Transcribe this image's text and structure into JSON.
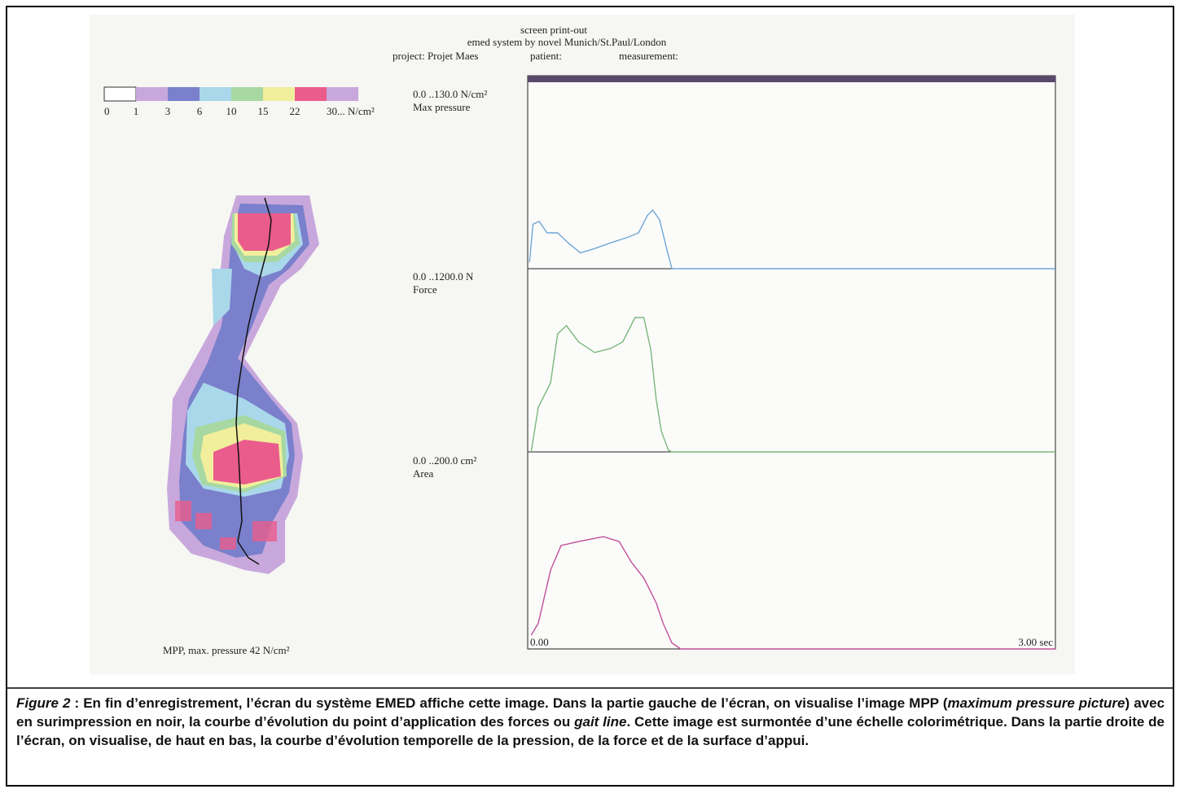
{
  "header": {
    "line1": "screen print-out",
    "line2": "emed system by novel Munich/St.Paul/London",
    "project": "project: Projet Maes",
    "patient": "patient:",
    "measurement": "measurement:"
  },
  "color_scale": {
    "colors": [
      "#ffffff",
      "#c8a8dc",
      "#7a80cc",
      "#a9d8ea",
      "#a8d8a2",
      "#f1ef9c",
      "#ea5c8c",
      "#c8a8dc"
    ],
    "labels": [
      "0",
      "1",
      "3",
      "6",
      "10",
      "15",
      "22",
      "30... N/cm²"
    ]
  },
  "foot_label": "MPP, max. pressure 42 N/cm²",
  "chart_data": {
    "type": "line",
    "xlim": [
      0,
      3
    ],
    "xticks": [
      {
        "value": 0,
        "label": "0.00"
      },
      {
        "value": 3,
        "label": "3.00 sec"
      }
    ],
    "series": [
      {
        "range": "0.0 ..130.0 N/cm²",
        "name": "Max pressure",
        "ylim": [
          0,
          130
        ],
        "color": "#6fa8d6",
        "x": [
          0.01,
          0.03,
          0.065,
          0.11,
          0.17,
          0.24,
          0.3,
          0.38,
          0.47,
          0.56,
          0.63,
          0.68,
          0.71,
          0.75,
          0.79,
          0.82,
          3.0
        ],
        "values": [
          4.5,
          31,
          33,
          25,
          25,
          17,
          11,
          14,
          18,
          21.5,
          25,
          37,
          41,
          34,
          14,
          0,
          0
        ]
      },
      {
        "range": "0.0 ..1200.0 N",
        "name": "Force",
        "ylim": [
          0,
          1200
        ],
        "color": "#7ab87a",
        "x": [
          0.02,
          0.06,
          0.13,
          0.17,
          0.22,
          0.29,
          0.38,
          0.47,
          0.54,
          0.61,
          0.66,
          0.7,
          0.73,
          0.76,
          0.8,
          0.82,
          3.0
        ],
        "values": [
          0,
          293,
          453,
          773,
          827,
          720,
          651,
          677,
          720,
          880,
          880,
          667,
          347,
          133,
          11,
          0,
          0
        ]
      },
      {
        "range": "0.0 ..200.0 cm²",
        "name": "Area",
        "ylim": [
          0,
          200
        ],
        "color": "#c0509a",
        "x": [
          0.02,
          0.06,
          0.13,
          0.19,
          0.29,
          0.43,
          0.52,
          0.59,
          0.66,
          0.73,
          0.77,
          0.82,
          0.87,
          3.0
        ],
        "values": [
          14,
          26,
          80,
          105,
          109,
          114,
          109,
          88,
          72,
          47,
          26,
          6,
          0,
          0
        ]
      }
    ]
  },
  "caption": {
    "parts": [
      "Figure 2",
      " : En fin d’enregistrement, l’écran du système EMED affiche cette image. Dans la partie gauche de l’écran, on visualise l’image MPP (",
      "maximum pressure picture",
      ") avec en surimpression en noir, la courbe d’évolution du point d’application des forces ou ",
      "gait line",
      ". Cette image est surmontée d’une échelle colorimétrique. Dans la partie droite de l’écran, on visualise, de haut en bas, la courbe d’évolution temporelle de la pression, de la force et de la surface d’appui."
    ]
  }
}
